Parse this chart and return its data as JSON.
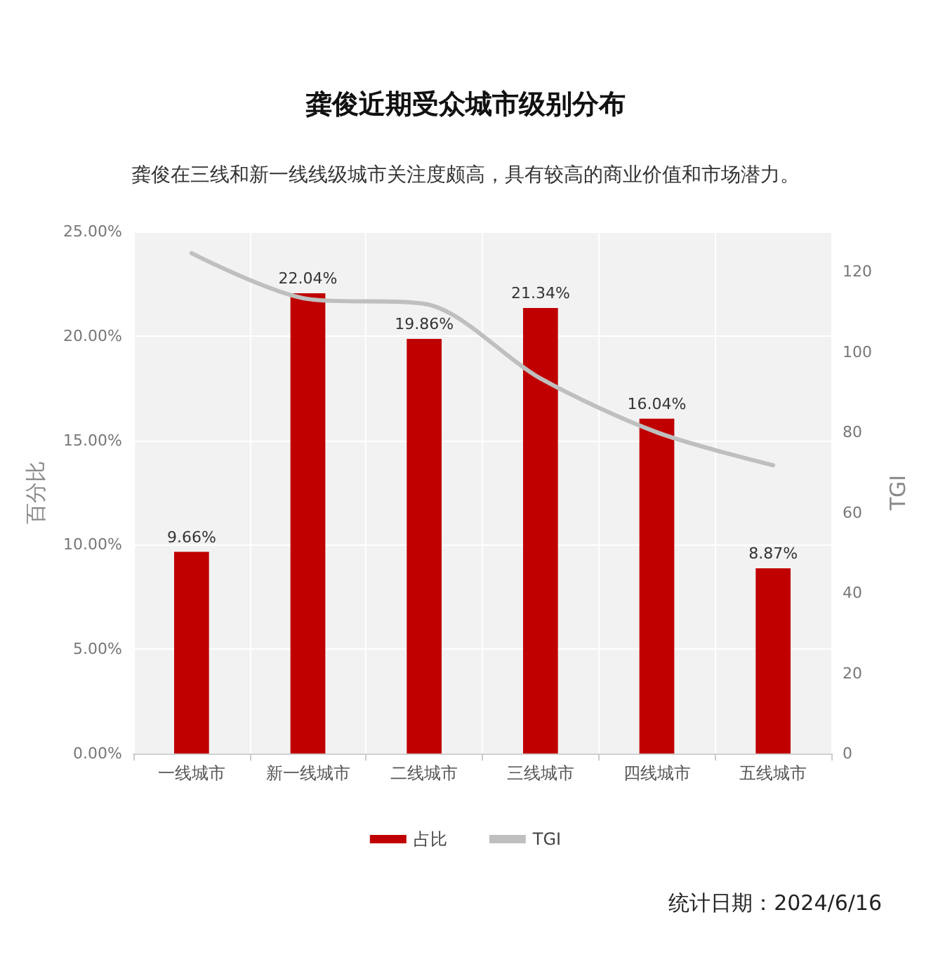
{
  "chart_data": {
    "type": "bar",
    "title": "龚俊近期受众城市级别分布",
    "subtitle": "龚俊在三线和新一线线级城市关注度颇高，具有较高的商业价值和市场潜力。",
    "ylabel": "百分比",
    "y2label": "TGI",
    "categories": [
      "一线城市",
      "新一线城市",
      "二线城市",
      "三线城市",
      "四线城市",
      "五线城市"
    ],
    "series": [
      {
        "name": "占比",
        "color": "#c00000",
        "values": [
          9.66,
          22.04,
          19.86,
          21.34,
          16.04,
          8.87
        ],
        "value_labels": [
          "9.66%",
          "22.04%",
          "19.86%",
          "21.34%",
          "16.04%",
          "8.87%"
        ]
      },
      {
        "name": "TGI",
        "type": "line",
        "axis": "y2",
        "color": "#bfbfbf",
        "values": [
          124.6,
          113.2,
          112,
          93.4,
          80,
          71.8
        ]
      }
    ],
    "ylim": [
      0,
      25
    ],
    "yticks": [
      {
        "value": 0,
        "label": "0.00%"
      },
      {
        "value": 5,
        "label": "5.00%"
      },
      {
        "value": 10,
        "label": "10.00%"
      },
      {
        "value": 15,
        "label": "15.00%"
      },
      {
        "value": 20,
        "label": "20.00%"
      },
      {
        "value": 25,
        "label": "25.00%"
      }
    ],
    "y2lim": [
      0,
      130
    ],
    "y2ticks": [
      0,
      20,
      40,
      60,
      80,
      100,
      120
    ],
    "grid": true,
    "legend": "bottom",
    "marker": "none",
    "line_style": "solid",
    "annotations": [
      "统计日期：2024/6/16"
    ]
  }
}
